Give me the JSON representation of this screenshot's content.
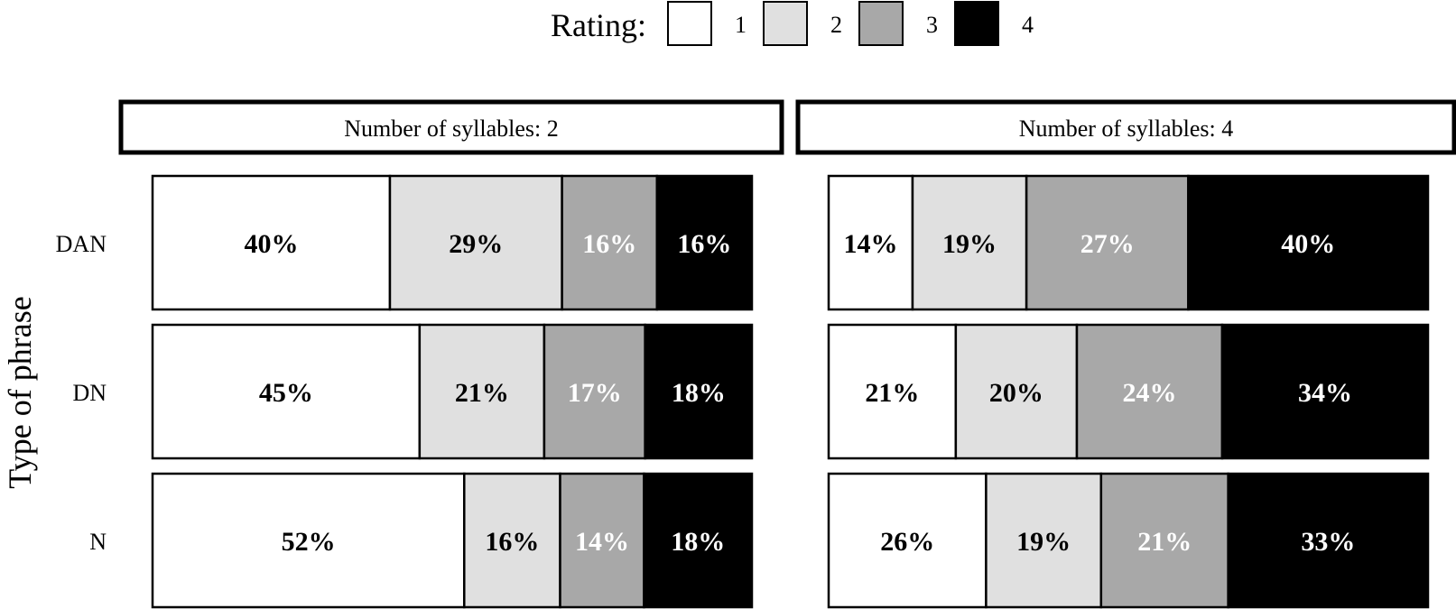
{
  "legend": {
    "title": "Rating:",
    "items": [
      {
        "label": "1",
        "color": "#ffffff"
      },
      {
        "label": "2",
        "color": "#e0e0e0"
      },
      {
        "label": "3",
        "color": "#a8a8a8"
      },
      {
        "label": "4",
        "color": "#000000"
      }
    ]
  },
  "y_axis_title": "Type of phrase",
  "chart_data": {
    "type": "bar",
    "orientation": "horizontal",
    "stacked": true,
    "normalized": true,
    "legend_position": "top",
    "categories": [
      "DAN",
      "DN",
      "N"
    ],
    "series_names": [
      "1",
      "2",
      "3",
      "4"
    ],
    "series_colors": [
      "#ffffff",
      "#e0e0e0",
      "#a8a8a8",
      "#000000"
    ],
    "label_colors": [
      "#000000",
      "#000000",
      "#ffffff",
      "#ffffff"
    ],
    "panels": [
      {
        "title": "Number of syllables: 2",
        "rows": [
          {
            "category": "DAN",
            "values": [
              40,
              29,
              16,
              16
            ],
            "labels": [
              "40%",
              "29%",
              "16%",
              "16%"
            ]
          },
          {
            "category": "DN",
            "values": [
              45,
              21,
              17,
              18
            ],
            "labels": [
              "45%",
              "21%",
              "17%",
              "18%"
            ]
          },
          {
            "category": "N",
            "values": [
              52,
              16,
              14,
              18
            ],
            "labels": [
              "52%",
              "16%",
              "14%",
              "18%"
            ]
          }
        ]
      },
      {
        "title": "Number of syllables: 4",
        "rows": [
          {
            "category": "DAN",
            "values": [
              14,
              19,
              27,
              40
            ],
            "labels": [
              "14%",
              "19%",
              "27%",
              "40%"
            ]
          },
          {
            "category": "DN",
            "values": [
              21,
              20,
              24,
              34
            ],
            "labels": [
              "21%",
              "20%",
              "24%",
              "34%"
            ]
          },
          {
            "category": "N",
            "values": [
              26,
              19,
              21,
              33
            ],
            "labels": [
              "26%",
              "19%",
              "21%",
              "33%"
            ]
          }
        ]
      }
    ]
  }
}
